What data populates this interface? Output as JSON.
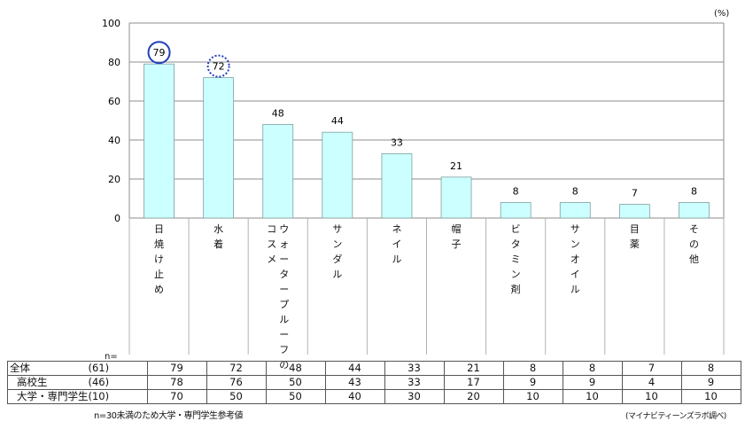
{
  "chart_data": {
    "type": "bar",
    "unit_label": "(%)",
    "ylim": [
      0,
      100
    ],
    "yticks": [
      "0",
      "20",
      "40",
      "60",
      "80",
      "100"
    ],
    "categories": [
      "日焼け止め",
      "水着",
      "ウォータープルーフのコスメ",
      "サンダル",
      "ネイル",
      "帽子",
      "ビタミン剤",
      "サンオイル",
      "目薬",
      "その他"
    ],
    "category_lines": [
      [
        "日焼け止め"
      ],
      [
        "水着"
      ],
      [
        "ウォータープルーフの",
        "コスメ"
      ],
      [
        "サンダル"
      ],
      [
        "ネイル"
      ],
      [
        "帽子"
      ],
      [
        "ビタミン剤"
      ],
      [
        "サンオイル"
      ],
      [
        "目薬"
      ],
      [
        "その他"
      ]
    ],
    "values": [
      79,
      72,
      48,
      44,
      33,
      21,
      8,
      8,
      7,
      8
    ],
    "value_labels": [
      "79",
      "72",
      "48",
      "44",
      "33",
      "21",
      "8",
      "8",
      "7",
      "8"
    ],
    "bar_color": "#ccffff",
    "bar_border": "#7f9f9f",
    "grid": true,
    "circles": [
      {
        "index": 0,
        "style": "solid",
        "color": "#1f3fbf"
      },
      {
        "index": 1,
        "style": "dotted",
        "color": "#1f3fbf"
      }
    ]
  },
  "table": {
    "n_label": "n=",
    "rows": [
      {
        "group": "全体",
        "n": "(61)",
        "values": [
          "79",
          "72",
          "48",
          "44",
          "33",
          "21",
          "8",
          "8",
          "7",
          "8"
        ]
      },
      {
        "group": "高校生",
        "n": "(46)",
        "values": [
          "78",
          "76",
          "50",
          "43",
          "33",
          "17",
          "9",
          "9",
          "4",
          "9"
        ]
      },
      {
        "group": "大学・専門学生",
        "n": "(10)",
        "values": [
          "70",
          "50",
          "50",
          "40",
          "30",
          "20",
          "10",
          "10",
          "10",
          "10"
        ]
      }
    ]
  },
  "footnote_left": "n=30未満のため大学・専門学生参考値",
  "footnote_right": "(マイナビティーンズラボ調べ)"
}
